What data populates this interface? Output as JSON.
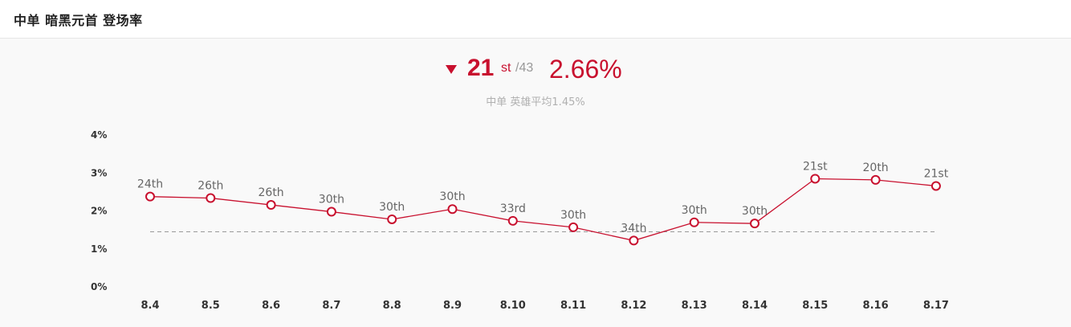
{
  "header": {
    "title": "中单 暗黑元首 登场率"
  },
  "summary": {
    "rank": "21",
    "rank_suffix": "st",
    "rank_total": "/43",
    "rate": "2.66%",
    "average_text": "中单 英雄平均1.45%"
  },
  "colors": {
    "accent": "#c8102e",
    "average_line": "#999999"
  },
  "chart_data": {
    "type": "line",
    "categories": [
      "8.4",
      "8.5",
      "8.6",
      "8.7",
      "8.8",
      "8.9",
      "8.10",
      "8.11",
      "8.12",
      "8.13",
      "8.14",
      "8.15",
      "8.16",
      "8.17"
    ],
    "values": [
      2.38,
      2.34,
      2.16,
      1.98,
      1.78,
      2.05,
      1.74,
      1.57,
      1.22,
      1.7,
      1.67,
      2.85,
      2.82,
      2.66
    ],
    "point_labels": [
      "24th",
      "26th",
      "26th",
      "30th",
      "30th",
      "30th",
      "33rd",
      "30th",
      "34th",
      "30th",
      "30th",
      "21st",
      "20th",
      "21st"
    ],
    "average": 1.45,
    "yticks": [
      "0%",
      "1%",
      "2%",
      "3%",
      "4%"
    ],
    "ylim": [
      0,
      4
    ],
    "grid": false,
    "legend": "none"
  }
}
